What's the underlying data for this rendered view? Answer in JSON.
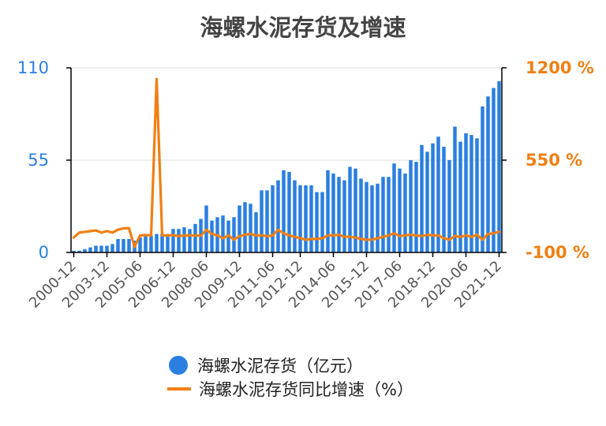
{
  "chart_data": {
    "type": "bar+line",
    "title": "海螺水泥存货及增速",
    "left_axis": {
      "ticks": [
        "0",
        "55",
        "110"
      ],
      "ylim": [
        0,
        110
      ]
    },
    "right_axis": {
      "ticks": [
        "-100 %",
        "550 %",
        "1200 %"
      ],
      "ylim": [
        -100,
        1200
      ]
    },
    "x_tick_labels": [
      "2000-12",
      "2003-12",
      "2005-06",
      "2006-12",
      "2008-06",
      "2009-12",
      "2011-06",
      "2012-12",
      "2014-06",
      "2015-12",
      "2017-06",
      "2018-12",
      "2020-06",
      "2021-12"
    ],
    "series": [
      {
        "name": "海螺水泥存货（亿元）",
        "type": "bar",
        "axis": "left",
        "color": "#2a7fe0",
        "values": [
          1,
          1,
          2,
          3,
          4,
          4,
          4,
          5,
          8,
          8,
          8,
          7,
          9,
          10,
          10,
          11,
          11,
          11,
          14,
          14,
          15,
          14,
          17,
          20,
          28,
          19,
          21,
          22,
          19,
          21,
          28,
          30,
          29,
          24,
          37,
          37,
          40,
          43,
          49,
          48,
          43,
          40,
          40,
          40,
          36,
          36,
          49,
          47,
          45,
          43,
          51,
          50,
          44,
          42,
          40,
          41,
          45,
          45,
          53,
          50,
          47,
          55,
          54,
          64,
          60,
          65,
          69,
          63,
          55,
          75,
          66,
          71,
          70,
          68,
          87,
          93,
          98,
          102
        ]
      },
      {
        "name": "海螺水泥存货同比增速（%）",
        "type": "line",
        "axis": "right",
        "color": "#f07f13",
        "values": [
          5,
          40,
          45,
          50,
          55,
          40,
          50,
          40,
          60,
          70,
          70,
          -60,
          20,
          22,
          20,
          1120,
          20,
          20,
          22,
          15,
          20,
          20,
          20,
          18,
          60,
          30,
          20,
          0,
          20,
          -10,
          15,
          25,
          30,
          20,
          20,
          15,
          20,
          60,
          35,
          20,
          10,
          0,
          -10,
          -5,
          -5,
          0,
          20,
          20,
          25,
          10,
          10,
          5,
          -5,
          -10,
          -10,
          0,
          10,
          20,
          35,
          15,
          20,
          25,
          20,
          15,
          25,
          20,
          20,
          0,
          -10,
          15,
          10,
          20,
          10,
          25,
          -10,
          30,
          35,
          45
        ]
      }
    ]
  }
}
